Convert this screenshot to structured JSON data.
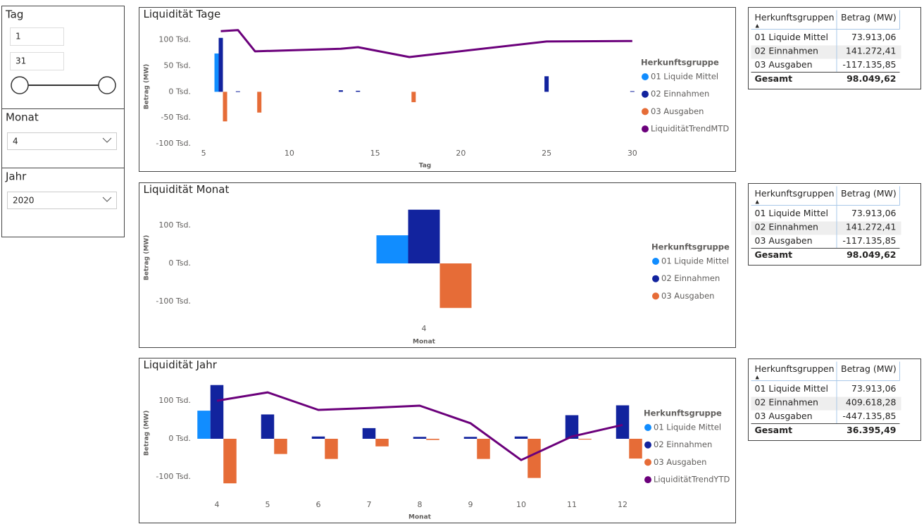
{
  "slicers": [
    {
      "title": "Tag",
      "from": "1",
      "to": "31"
    },
    {
      "title": "Monat",
      "value": "4"
    },
    {
      "title": "Jahr",
      "value": "2020"
    }
  ],
  "chart_data": [
    {
      "type": "combo",
      "title": "Liquidität Tage",
      "y_label": "Betrag (MW)",
      "x_label": "Tag",
      "x": [
        6,
        7,
        8,
        13,
        14,
        17,
        25,
        30
      ],
      "xlim": [
        4.5,
        30.5
      ],
      "xticks": [
        5,
        10,
        15,
        20,
        25,
        30
      ],
      "ylim": [
        -100000,
        120000
      ],
      "yticks": [
        {
          "value": -100000,
          "label": "-100 Tsd."
        },
        {
          "value": -50000,
          "label": "-50 Tsd."
        },
        {
          "value": 0,
          "label": "0 Tsd."
        },
        {
          "value": 50000,
          "label": "50 Tsd."
        },
        {
          "value": 100000,
          "label": "100 Tsd."
        }
      ],
      "grid": false,
      "legend_title": "Herkunftsgruppe",
      "legend": "right",
      "series": [
        {
          "name": "01 Liquide Mittel",
          "type": "bar",
          "color": "#118DFF",
          "values": [
            73913,
            null,
            null,
            null,
            null,
            null,
            null,
            null
          ]
        },
        {
          "name": "02 Einnahmen",
          "type": "bar",
          "color": "#12239E",
          "values": [
            104000,
            1000,
            null,
            3000,
            2000,
            null,
            30000,
            1272
          ]
        },
        {
          "name": "03 Ausgaben",
          "type": "bar",
          "color": "#E66C37",
          "values": [
            -57000,
            null,
            -40000,
            null,
            null,
            -20000,
            null,
            null
          ]
        },
        {
          "name": "LiquiditätTrendMTD",
          "type": "line",
          "color": "#6B007B",
          "values": [
            117000,
            119000,
            78000,
            83000,
            86000,
            67000,
            97000,
            98000
          ]
        }
      ]
    },
    {
      "type": "bar",
      "title": "Liquidität Monat",
      "y_label": "Betrag (MW)",
      "x_label": "Monat",
      "categories": [
        "4"
      ],
      "ylim": [
        -120000,
        150000
      ],
      "yticks": [
        {
          "value": -100000,
          "label": "-100 Tsd."
        },
        {
          "value": 0,
          "label": "0 Tsd."
        },
        {
          "value": 100000,
          "label": "100 Tsd."
        }
      ],
      "grid": false,
      "legend_title": "Herkunftsgruppe",
      "legend": "right",
      "series": [
        {
          "name": "01 Liquide Mittel",
          "type": "bar",
          "color": "#118DFF",
          "values": [
            73913
          ]
        },
        {
          "name": "02 Einnahmen",
          "type": "bar",
          "color": "#12239E",
          "values": [
            141272
          ]
        },
        {
          "name": "03 Ausgaben",
          "type": "bar",
          "color": "#E66C37",
          "values": [
            -117136
          ]
        }
      ]
    },
    {
      "type": "combo",
      "title": "Liquidität Jahr",
      "y_label": "Betrag (MW)",
      "x_label": "Monat",
      "categories": [
        "4",
        "5",
        "6",
        "7",
        "8",
        "9",
        "10",
        "11",
        "12"
      ],
      "ylim": [
        -125000,
        155000
      ],
      "yticks": [
        {
          "value": -100000,
          "label": "-100 Tsd."
        },
        {
          "value": 0,
          "label": "0 Tsd."
        },
        {
          "value": 100000,
          "label": "100 Tsd."
        }
      ],
      "grid": false,
      "legend_title": "Herkunftsgruppe",
      "legend": "right",
      "series": [
        {
          "name": "01 Liquide Mittel",
          "type": "bar",
          "color": "#118DFF",
          "values": [
            73913,
            null,
            null,
            null,
            null,
            null,
            null,
            null,
            null
          ]
        },
        {
          "name": "02 Einnahmen",
          "type": "bar",
          "color": "#12239E",
          "values": [
            141272,
            64000,
            6000,
            28000,
            5000,
            5000,
            6000,
            62000,
            88000
          ]
        },
        {
          "name": "03 Ausgaben",
          "type": "bar",
          "color": "#E66C37",
          "values": [
            -117136,
            -40000,
            -53000,
            -20000,
            -3000,
            -53000,
            -103000,
            -2000,
            -52000
          ]
        },
        {
          "name": "LiquiditätTrendYTD",
          "type": "line",
          "color": "#6B007B",
          "values": [
            100000,
            122000,
            76000,
            81000,
            87000,
            41000,
            -56000,
            6000,
            36395
          ]
        }
      ]
    }
  ],
  "tables": [
    {
      "columns": [
        "Herkunftsgruppen",
        "Betrag (MW)"
      ],
      "sort": "▲",
      "rows": [
        [
          "01 Liquide Mittel",
          "73.913,06"
        ],
        [
          "02 Einnahmen",
          "141.272,41"
        ],
        [
          "03 Ausgaben",
          "-117.135,85"
        ]
      ],
      "total": [
        "Gesamt",
        "98.049,62"
      ]
    },
    {
      "columns": [
        "Herkunftsgruppen",
        "Betrag (MW)"
      ],
      "sort": "▲",
      "rows": [
        [
          "01 Liquide Mittel",
          "73.913,06"
        ],
        [
          "02 Einnahmen",
          "141.272,41"
        ],
        [
          "03 Ausgaben",
          "-117.135,85"
        ]
      ],
      "total": [
        "Gesamt",
        "98.049,62"
      ]
    },
    {
      "columns": [
        "Herkunftsgruppen",
        "Betrag (MW)"
      ],
      "sort": "▲",
      "rows": [
        [
          "01 Liquide Mittel",
          "73.913,06"
        ],
        [
          "02 Einnahmen",
          "409.618,28"
        ],
        [
          "03 Ausgaben",
          "-447.135,85"
        ]
      ],
      "total": [
        "Gesamt",
        "36.395,49"
      ]
    }
  ]
}
